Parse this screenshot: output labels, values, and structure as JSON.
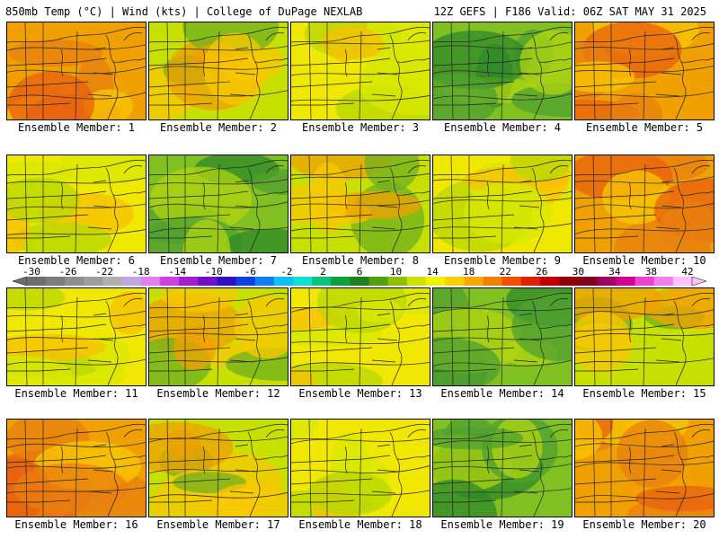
{
  "header": {
    "left": "850mb Temp (°C) | Wind (kts) | College of DuPage NEXLAB",
    "right": "12Z GEFS | F186 Valid: 06Z SAT MAY 31 2025"
  },
  "panel_caption_prefix": "Ensemble Member:",
  "members": [
    {
      "label": "Ensemble Member: 1",
      "tone": "warm"
    },
    {
      "label": "Ensemble Member: 2",
      "tone": "mixed"
    },
    {
      "label": "Ensemble Member: 3",
      "tone": "mild"
    },
    {
      "label": "Ensemble Member: 4",
      "tone": "cool"
    },
    {
      "label": "Ensemble Member: 5",
      "tone": "warm"
    },
    {
      "label": "Ensemble Member: 6",
      "tone": "mild"
    },
    {
      "label": "Ensemble Member: 7",
      "tone": "cool"
    },
    {
      "label": "Ensemble Member: 8",
      "tone": "mixed"
    },
    {
      "label": "Ensemble Member: 9",
      "tone": "mild"
    },
    {
      "label": "Ensemble Member: 10",
      "tone": "warm"
    },
    {
      "label": "Ensemble Member: 11",
      "tone": "mild"
    },
    {
      "label": "Ensemble Member: 12",
      "tone": "mixed"
    },
    {
      "label": "Ensemble Member: 13",
      "tone": "mild"
    },
    {
      "label": "Ensemble Member: 14",
      "tone": "cool"
    },
    {
      "label": "Ensemble Member: 15",
      "tone": "mixed"
    },
    {
      "label": "Ensemble Member: 16",
      "tone": "warm"
    },
    {
      "label": "Ensemble Member: 17",
      "tone": "mixed"
    },
    {
      "label": "Ensemble Member: 18",
      "tone": "mild"
    },
    {
      "label": "Ensemble Member: 19",
      "tone": "cool"
    },
    {
      "label": "Ensemble Member: 20",
      "tone": "warm"
    }
  ],
  "colorbar": {
    "ticks": [
      "-30",
      "-26",
      "-22",
      "-18",
      "-14",
      "-10",
      "-6",
      "-2",
      "2",
      "6",
      "10",
      "14",
      "18",
      "22",
      "26",
      "30",
      "34",
      "38",
      "42"
    ],
    "colors": [
      "#6e6e6e",
      "#7e7e7e",
      "#8e8e8e",
      "#9e9e9e",
      "#b0b0b0",
      "#c0a8e0",
      "#e080f0",
      "#d040e0",
      "#a020d0",
      "#7010c0",
      "#3010c0",
      "#1040e0",
      "#1080f0",
      "#10c0f0",
      "#10e0d0",
      "#10c080",
      "#10a040",
      "#208020",
      "#50a010",
      "#90c000",
      "#d0e000",
      "#f0f000",
      "#f8d000",
      "#f8a800",
      "#f08000",
      "#f05000",
      "#e02000",
      "#c00000",
      "#900000",
      "#800020",
      "#a00060",
      "#d00090",
      "#f040d0",
      "#f080f0",
      "#ffc0ff"
    ]
  },
  "tone_colors": {
    "warm": [
      "#f0a000",
      "#e88010",
      "#f8c800",
      "#e86010"
    ],
    "mild": [
      "#f0e800",
      "#d8e800",
      "#f8c000",
      "#b8d800"
    ],
    "cool": [
      "#80c020",
      "#50a030",
      "#2e8a2a",
      "#b0d410"
    ],
    "mixed": [
      "#c8e000",
      "#f8c800",
      "#70b020",
      "#f0a000"
    ]
  }
}
